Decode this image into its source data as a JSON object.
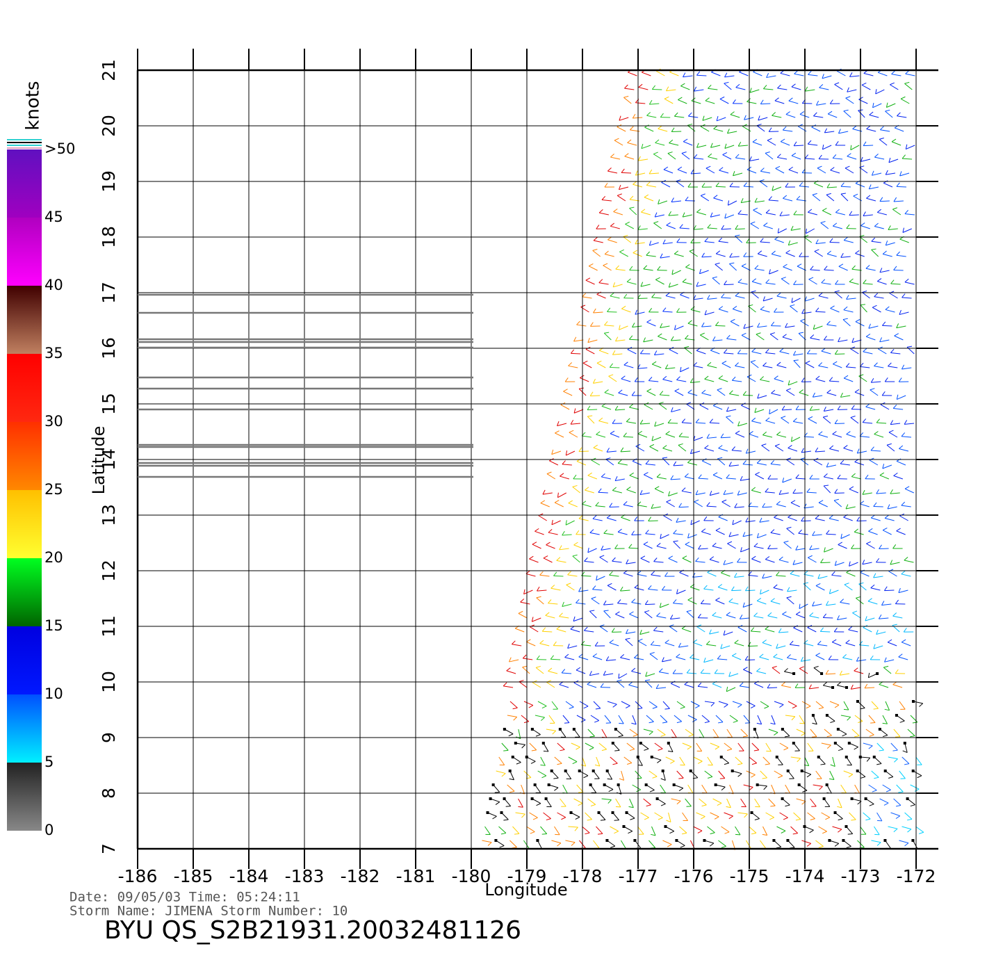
{
  "chart_data": {
    "type": "windmap",
    "xlabel": "Longitude",
    "ylabel": "Latitude",
    "xlim": [
      -186,
      -172
    ],
    "ylim": [
      7,
      21
    ],
    "xticks": [
      -186,
      -185,
      -184,
      -183,
      -182,
      -181,
      -180,
      -179,
      -178,
      -177,
      -176,
      -175,
      -174,
      -173,
      -172
    ],
    "yticks": [
      7,
      8,
      9,
      10,
      11,
      12,
      13,
      14,
      15,
      16,
      17,
      18,
      19,
      20,
      21
    ],
    "grid": true,
    "colorbar": {
      "label": "knots",
      "lim": [
        0,
        50
      ],
      "ticks": [
        0,
        5,
        10,
        15,
        20,
        25,
        30,
        35,
        40,
        45,
        {
          "value": 50,
          "label": ">50"
        }
      ],
      "colors": [
        [
          "#888888",
          "#222222"
        ],
        [
          "#00f0ff",
          "#0050ff"
        ],
        [
          "#0018ff",
          "#0000e0"
        ],
        [
          "#006400",
          "#00ff20"
        ],
        [
          "#ffff30",
          "#ffc000"
        ],
        [
          "#ff8800",
          "#ff3000"
        ],
        [
          "#ff2810",
          "#ff0000"
        ],
        [
          "#c08060",
          "#400000"
        ],
        [
          "#ff00ff",
          "#b000c0"
        ],
        [
          "#a000c0",
          "#6010c0"
        ]
      ]
    },
    "date_line": "Date: 09/05/03   Time: 05:24:11",
    "storm_line": "Storm  Name:  JIMENA   Storm  Number:  10",
    "title": "BYU  QS_S2B21931.20032481126"
  }
}
